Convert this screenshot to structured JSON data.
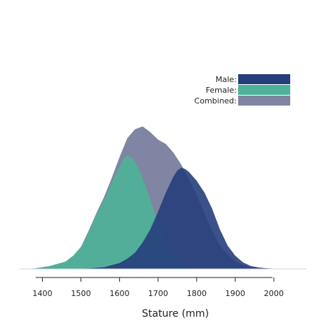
{
  "chart_data": {
    "type": "area",
    "title": "",
    "xlabel": "Stature (mm)",
    "ylabel": "",
    "xlim": [
      1340,
      2085
    ],
    "ylim": [
      0,
      1
    ],
    "xticks": [
      1400,
      1500,
      1600,
      1700,
      1800,
      1900,
      2000
    ],
    "tick_labels": [
      "1400",
      "1500",
      "1600",
      "1700",
      "1800",
      "1900",
      "2000"
    ],
    "grid": false,
    "legend_position": "top-right",
    "series": [
      {
        "name": "Combined:",
        "color": "#7f85a2",
        "x": [
          1340,
          1380,
          1420,
          1460,
          1480,
          1500,
          1520,
          1540,
          1560,
          1580,
          1600,
          1620,
          1640,
          1660,
          1680,
          1700,
          1720,
          1740,
          1760,
          1780,
          1800,
          1820,
          1840,
          1860,
          1880,
          1900,
          1920,
          1940,
          1960,
          1980,
          2000,
          2030,
          2060,
          2085
        ],
        "y": [
          0,
          0.003,
          0.02,
          0.05,
          0.09,
          0.15,
          0.26,
          0.38,
          0.49,
          0.62,
          0.76,
          0.89,
          0.95,
          0.97,
          0.93,
          0.88,
          0.85,
          0.79,
          0.71,
          0.61,
          0.5,
          0.38,
          0.26,
          0.16,
          0.1,
          0.05,
          0.025,
          0.012,
          0.006,
          0.003,
          0.001,
          0,
          0,
          0
        ]
      },
      {
        "name": "Female:",
        "color": "#4eb298",
        "x": [
          1340,
          1380,
          1420,
          1460,
          1480,
          1500,
          1520,
          1540,
          1560,
          1580,
          1600,
          1610,
          1620,
          1630,
          1640,
          1660,
          1680,
          1700,
          1720,
          1740,
          1760,
          1780,
          1800,
          1820,
          1840,
          1860
        ],
        "y": [
          0,
          0.003,
          0.02,
          0.05,
          0.09,
          0.15,
          0.25,
          0.37,
          0.47,
          0.59,
          0.7,
          0.75,
          0.77,
          0.76,
          0.73,
          0.62,
          0.47,
          0.31,
          0.18,
          0.1,
          0.05,
          0.025,
          0.012,
          0.005,
          0.002,
          0
        ]
      },
      {
        "name": "Male:",
        "color": "#263e7c",
        "x": [
          1480,
          1520,
          1560,
          1600,
          1620,
          1640,
          1660,
          1680,
          1700,
          1720,
          1740,
          1750,
          1760,
          1770,
          1780,
          1800,
          1820,
          1840,
          1860,
          1880,
          1900,
          1920,
          1940,
          1960,
          1980,
          2000,
          2030,
          2060,
          2085
        ],
        "y": [
          0,
          0.004,
          0.012,
          0.04,
          0.07,
          0.11,
          0.18,
          0.27,
          0.39,
          0.52,
          0.63,
          0.67,
          0.69,
          0.68,
          0.66,
          0.6,
          0.52,
          0.41,
          0.27,
          0.16,
          0.09,
          0.045,
          0.02,
          0.01,
          0.005,
          0.002,
          0.001,
          0,
          0
        ]
      }
    ]
  }
}
